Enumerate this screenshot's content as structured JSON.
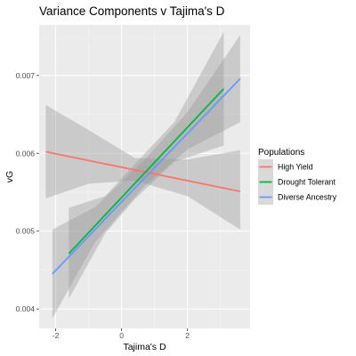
{
  "chart_data": {
    "type": "line",
    "title": "Variance Components v Tajima's D",
    "xlabel": "Tajima's D",
    "ylabel": "vG",
    "xlim": [
      -2.5,
      3.9
    ],
    "ylim": [
      0.00375,
      0.00765
    ],
    "x_ticks": [
      -2,
      0,
      2
    ],
    "x_tick_labels": [
      "-2",
      "0",
      "2"
    ],
    "y_ticks": [
      0.004,
      0.005,
      0.006,
      0.007
    ],
    "y_tick_labels": [
      "0.004",
      "0.005",
      "0.006",
      "0.007"
    ],
    "grid": true,
    "background": "#ebebeb",
    "ribbon_color": "#999999",
    "legend_title": "Populations",
    "legend_position": "right",
    "series": [
      {
        "name": "High Yield",
        "color": "#f8766d",
        "x": [
          -2.3,
          3.6
        ],
        "y": [
          0.00602,
          0.00551
        ],
        "ci": [
          {
            "x": -2.3,
            "lower": 0.00542,
            "upper": 0.00662
          },
          {
            "x": -1.0,
            "lower": 0.00561,
            "upper": 0.0063
          },
          {
            "x": 0.4,
            "lower": 0.00565,
            "upper": 0.00594
          },
          {
            "x": 2.0,
            "lower": 0.00545,
            "upper": 0.00592
          },
          {
            "x": 3.6,
            "lower": 0.00502,
            "upper": 0.00604
          }
        ]
      },
      {
        "name": "Drought Tolerant",
        "color": "#00ba38",
        "x": [
          -1.6,
          3.1
        ],
        "y": [
          0.00471,
          0.00683
        ],
        "ci": [
          {
            "x": -1.6,
            "lower": 0.00413,
            "upper": 0.0053
          },
          {
            "x": -0.5,
            "lower": 0.00497,
            "upper": 0.00545
          },
          {
            "x": 0.4,
            "lower": 0.00541,
            "upper": 0.00586
          },
          {
            "x": 1.6,
            "lower": 0.00589,
            "upper": 0.0064
          },
          {
            "x": 3.1,
            "lower": 0.0061,
            "upper": 0.00756
          }
        ]
      },
      {
        "name": "Diverse Ancestry",
        "color": "#619cff",
        "x": [
          -2.1,
          3.6
        ],
        "y": [
          0.00445,
          0.00696
        ],
        "ci": [
          {
            "x": -2.1,
            "lower": 0.00388,
            "upper": 0.00502
          },
          {
            "x": -0.8,
            "lower": 0.00486,
            "upper": 0.00531
          },
          {
            "x": 0.7,
            "lower": 0.00558,
            "upper": 0.00592
          },
          {
            "x": 2.0,
            "lower": 0.00605,
            "upper": 0.00653
          },
          {
            "x": 3.6,
            "lower": 0.0064,
            "upper": 0.00752
          }
        ]
      }
    ]
  }
}
